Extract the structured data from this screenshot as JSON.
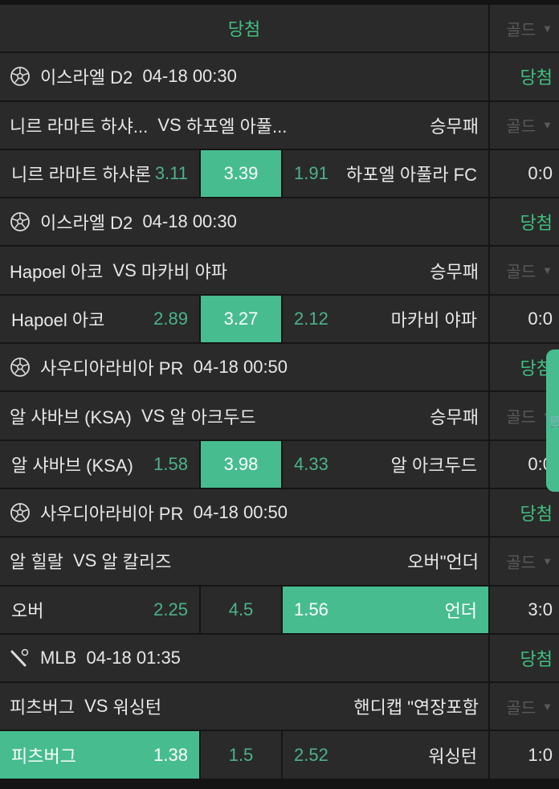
{
  "header": {
    "title": "당첨",
    "gold_label": "골드"
  },
  "accent": "#47bd8f",
  "matches": [
    {
      "sport_icon": "soccer-ball-icon",
      "league": "이스라엘 D2",
      "time": "04-18 00:30",
      "status": "당첨",
      "title_home": "니르 라마트 하샤...",
      "vs": "VS",
      "title_away": "하포엘 아풀...",
      "market": "승무패",
      "gold": "골드",
      "home": "니르 라마트 하샤론",
      "home_odd": "3.11",
      "mid": "3.39",
      "away_odd": "1.91",
      "away": "하포엘 아풀라 FC",
      "score": "0:0",
      "selected": "mid"
    },
    {
      "sport_icon": "soccer-ball-icon",
      "league": "이스라엘 D2",
      "time": "04-18 00:30",
      "status": "당첨",
      "title_home": "Hapoel 아코",
      "vs": "VS",
      "title_away": "마카비 야파",
      "market": "승무패",
      "gold": "골드",
      "home": "Hapoel 아코",
      "home_odd": "2.89",
      "mid": "3.27",
      "away_odd": "2.12",
      "away": "마카비 야파",
      "score": "0:0",
      "selected": "mid"
    },
    {
      "sport_icon": "soccer-ball-icon",
      "league": "사우디아라비아 PR",
      "time": "04-18 00:50",
      "status": "당첨",
      "title_home": "알 샤바브 (KSA)",
      "vs": "VS",
      "title_away": "알 아크두드",
      "market": "승무패",
      "gold": "골드",
      "home": "알 샤바브 (KSA)",
      "home_odd": "1.58",
      "mid": "3.98",
      "away_odd": "4.33",
      "away": "알 아크두드",
      "score": "0:0",
      "selected": "mid"
    },
    {
      "sport_icon": "soccer-ball-icon",
      "league": "사우디아라비아 PR",
      "time": "04-18 00:50",
      "status": "당첨",
      "title_home": "알 힐랄",
      "vs": "VS",
      "title_away": "알 칼리즈",
      "market": "오버\"언더",
      "gold": "골드",
      "home": "오버",
      "home_odd": "2.25",
      "mid": "4.5",
      "away_odd": "1.56",
      "away": "언더",
      "score": "3:0",
      "selected": "away"
    },
    {
      "sport_icon": "baseball-bat-icon",
      "league": "MLB",
      "time": "04-18 01:35",
      "status": "당첨",
      "title_home": "피츠버그",
      "vs": "VS",
      "title_away": "워싱턴",
      "market": "핸디캡 \"연장포함",
      "gold": "골드",
      "home": "피츠버그",
      "home_odd": "1.38",
      "mid": "1.5",
      "away_odd": "2.52",
      "away": "워싱턴",
      "score": "1:0",
      "selected": "home"
    }
  ],
  "cart_icon": "cart-icon"
}
